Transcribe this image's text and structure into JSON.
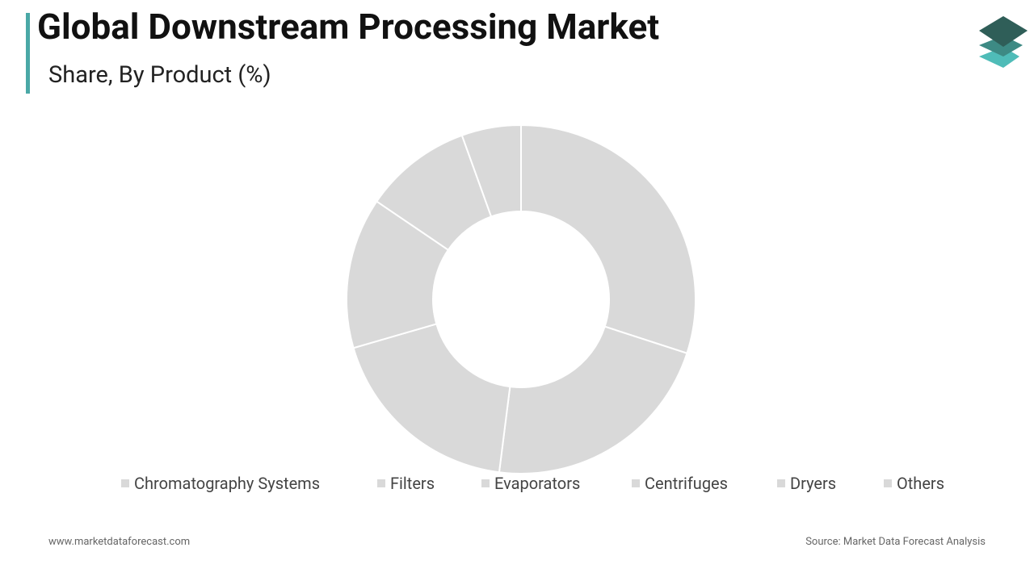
{
  "chart_data": {
    "type": "donut",
    "title": "Global Downstream Processing Market",
    "subtitle": "Share, By Product (%)",
    "categories": [
      "Chromatography Systems",
      "Filters",
      "Evaporators",
      "Centrifuges",
      "Dryers",
      "Others"
    ],
    "values": [
      30,
      22,
      18.5,
      14,
      10,
      5.5
    ],
    "color": "#d9d9d9"
  },
  "footer": {
    "website": "www.marketdataforecast.com",
    "source": "Source: Market Data Forecast Analysis"
  }
}
